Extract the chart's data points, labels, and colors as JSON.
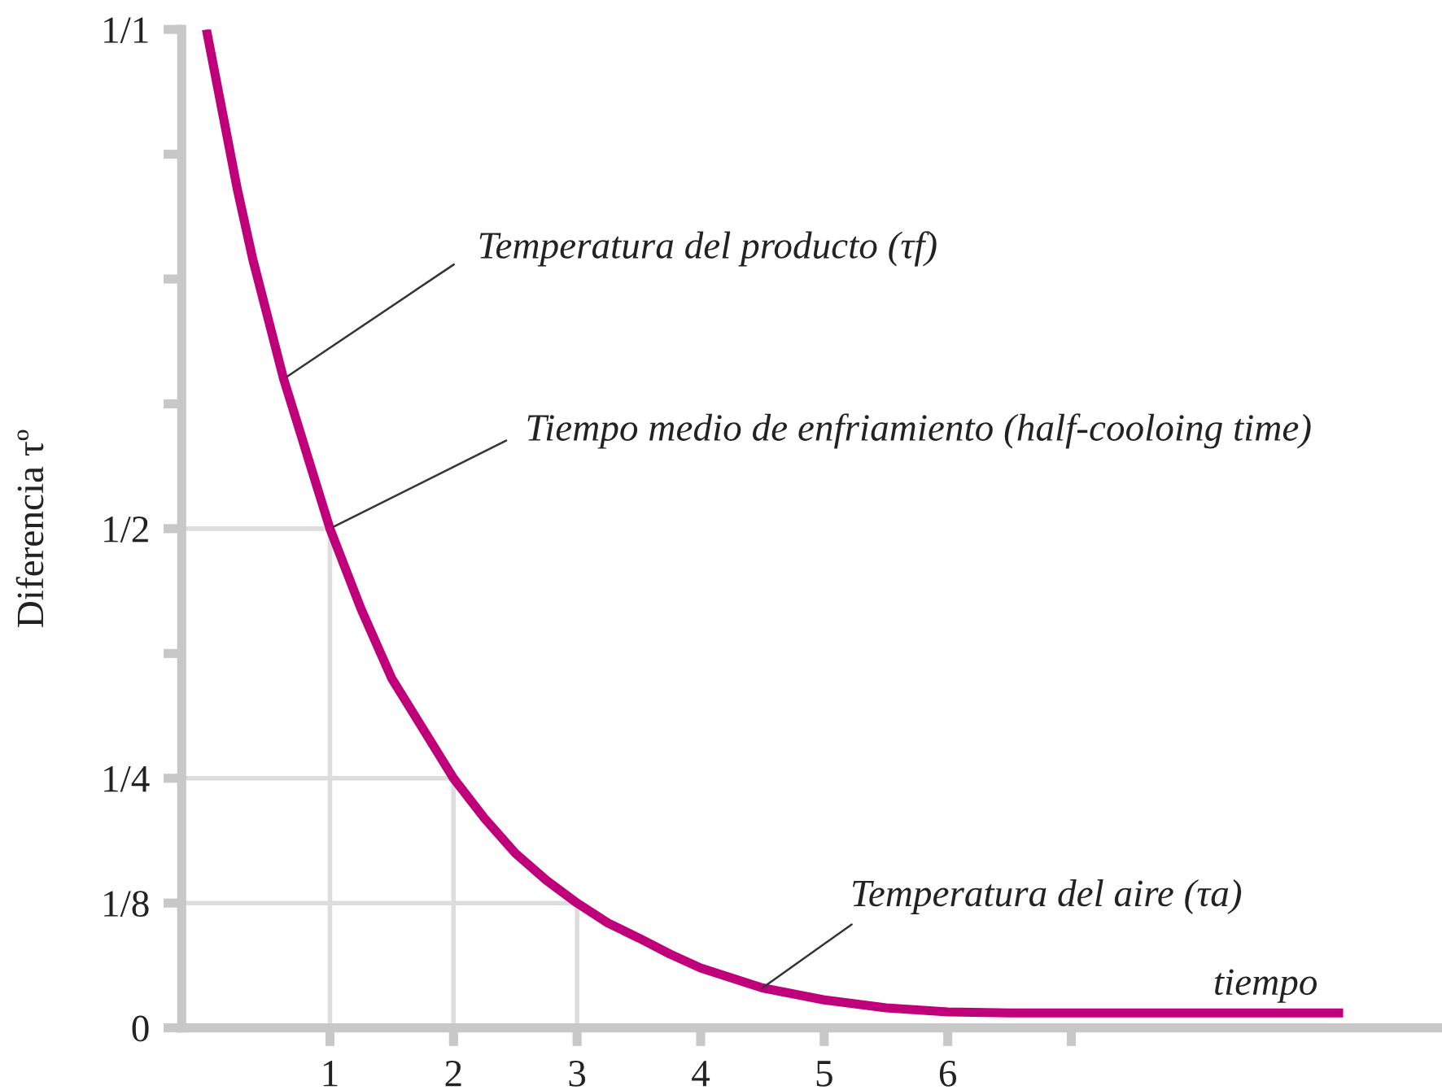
{
  "chart_data": {
    "type": "line",
    "xlabel": "tiempo",
    "ylabel": "Diferencia τº",
    "x": [
      0,
      0.125,
      0.25,
      0.375,
      0.5,
      0.625,
      0.75,
      0.875,
      1,
      1.125,
      1.25,
      1.5,
      1.75,
      2,
      2.25,
      2.5,
      2.75,
      3,
      3.25,
      3.5,
      3.75,
      4,
      4.5,
      5,
      5.5,
      6,
      6.5,
      7,
      8,
      9.2
    ],
    "series": [
      {
        "color": "#c0007a",
        "values": [
          1.0,
          0.92,
          0.84,
          0.77,
          0.71,
          0.65,
          0.6,
          0.55,
          0.5,
          0.46,
          0.42,
          0.35,
          0.3,
          0.25,
          0.21,
          0.175,
          0.148,
          0.125,
          0.105,
          0.09,
          0.074,
          0.06,
          0.04,
          0.028,
          0.02,
          0.016,
          0.015,
          0.015,
          0.015,
          0.015
        ]
      }
    ],
    "xlim": [
      -0.2,
      10
    ],
    "xticks": [
      1,
      2,
      3,
      4,
      5,
      6,
      {
        "value": 7,
        "label": null
      }
    ],
    "ylim": [
      0,
      1.0
    ],
    "yticks": [
      {
        "value": 0,
        "label": "0"
      },
      {
        "value": 0.125,
        "label": "1/8"
      },
      {
        "value": 0.25,
        "label": "1/4"
      },
      {
        "value": 0.375,
        "label": null
      },
      {
        "value": 0.5,
        "label": "1/2"
      },
      {
        "value": 0.625,
        "label": null
      },
      {
        "value": 0.75,
        "label": null
      },
      {
        "value": 0.875,
        "label": null
      },
      {
        "value": 1,
        "label": "1/1"
      }
    ],
    "ref_lines": [
      {
        "axis": "x",
        "value": 1,
        "color": "#dddddd"
      },
      {
        "axis": "x",
        "value": 2,
        "color": "#dddddd"
      },
      {
        "axis": "x",
        "value": 3,
        "color": "#dddddd"
      },
      {
        "axis": "y",
        "value": 0.5,
        "color": "#dddddd"
      },
      {
        "axis": "y",
        "value": 0.25,
        "color": "#dddddd"
      },
      {
        "axis": "y",
        "value": 0.125,
        "color": "#dddddd"
      }
    ],
    "annotations": [
      {
        "text": "Temperatura del producto (τf)",
        "x": 0.625,
        "y": 0.65
      },
      {
        "text": "Tiempo medio de enfriamiento (half-cooloing time)",
        "x": 1,
        "y": 0.5
      },
      {
        "text": "Temperatura del aire (τa)",
        "x": 4.5,
        "y": 0.04
      }
    ],
    "grid": false,
    "legend": false,
    "marker": "none",
    "line_style": "solid"
  }
}
